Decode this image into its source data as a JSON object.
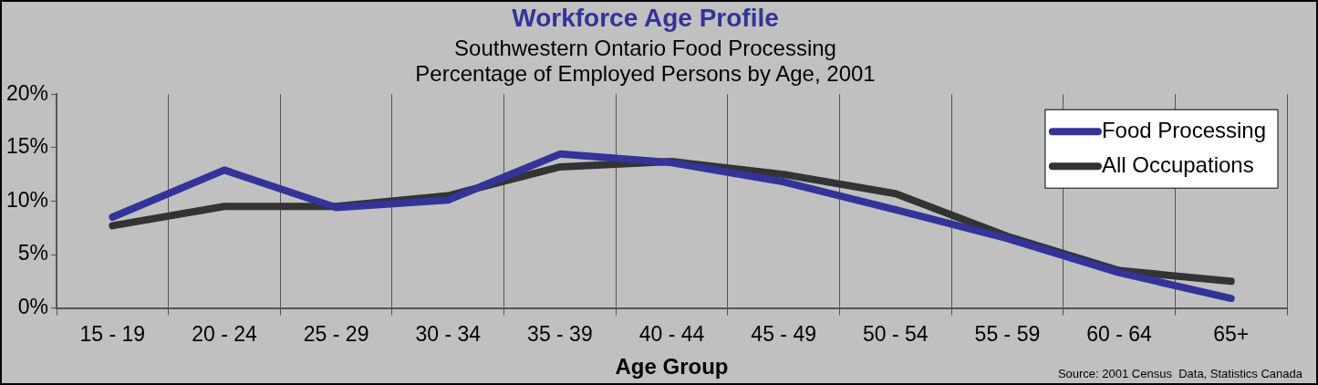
{
  "chart_data": {
    "type": "line",
    "title": "Workforce Age Profile",
    "subtitle": "Southwestern Ontario Food Processing\nPercentage of Employed Persons by Age, 2001",
    "xlabel": "Age Group",
    "annotations": [
      "Source: 2001 Census  Data, Statistics Canada"
    ],
    "categories": [
      "15 - 19",
      "20 - 24",
      "25 - 29",
      "30 - 34",
      "35 - 39",
      "40 - 44",
      "45 - 49",
      "50 - 54",
      "55 - 59",
      "60 - 64",
      "65+"
    ],
    "series": [
      {
        "name": "Food Processing",
        "color": "#333399",
        "values": [
          8.5,
          12.9,
          9.4,
          10.1,
          14.4,
          13.6,
          11.8,
          9.2,
          6.5,
          3.3,
          0.9
        ]
      },
      {
        "name": "All Occupations",
        "color": "#333333",
        "values": [
          7.7,
          9.5,
          9.5,
          10.5,
          13.2,
          13.7,
          12.5,
          10.7,
          6.7,
          3.5,
          2.5
        ]
      }
    ],
    "ylim": [
      0,
      20
    ],
    "yticks": [
      {
        "value": 0,
        "label": "0%"
      },
      {
        "value": 5,
        "label": "5%"
      },
      {
        "value": 10,
        "label": "10%"
      },
      {
        "value": 15,
        "label": "15%"
      },
      {
        "value": 20,
        "label": "20%"
      }
    ],
    "grid": "x",
    "legend": "top right",
    "marker": "none",
    "line_style": "solid"
  }
}
